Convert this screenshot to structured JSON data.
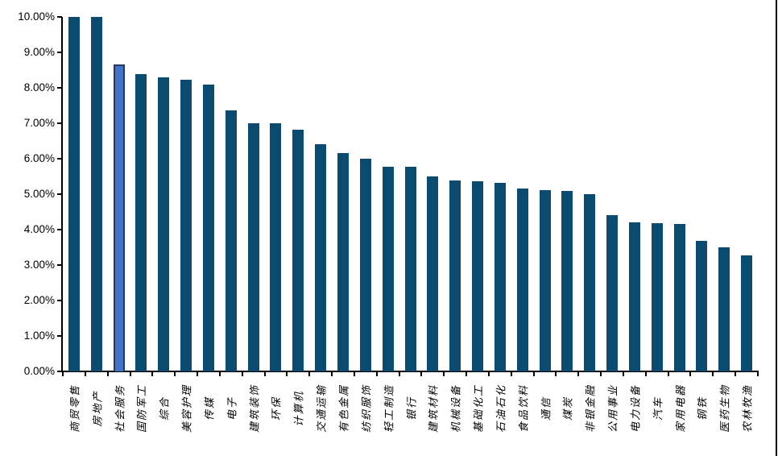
{
  "chart_data": {
    "type": "bar",
    "title": "",
    "xlabel": "",
    "ylabel": "",
    "categories": [
      "商贸零售",
      "房地产",
      "社会服务",
      "国防军工",
      "综合",
      "美容护理",
      "传媒",
      "电子",
      "建筑装饰",
      "环保",
      "计算机",
      "交通运输",
      "有色金属",
      "纺织服饰",
      "轻工制造",
      "银行",
      "建筑材料",
      "机械设备",
      "基础化工",
      "石油石化",
      "食品饮料",
      "通信",
      "煤炭",
      "非银金融",
      "公用事业",
      "电力设备",
      "汽车",
      "家用电器",
      "钢铁",
      "医药生物",
      "农林牧渔"
    ],
    "values": [
      10.0,
      10.0,
      8.65,
      8.38,
      8.3,
      8.23,
      8.1,
      7.36,
      7.0,
      6.99,
      6.82,
      6.4,
      6.15,
      6.01,
      5.78,
      5.77,
      5.5,
      5.38,
      5.37,
      5.31,
      5.15,
      5.12,
      5.1,
      5.0,
      4.42,
      4.2,
      4.19,
      4.17,
      3.68,
      3.5,
      3.27
    ],
    "highlight_index": 2,
    "y_tick_labels": [
      "0.00%",
      "1.00%",
      "2.00%",
      "3.00%",
      "4.00%",
      "5.00%",
      "6.00%",
      "7.00%",
      "8.00%",
      "9.00%",
      "10.00%"
    ],
    "ylim": [
      0,
      10
    ],
    "grid": "off",
    "legend": "none",
    "colors": {
      "bar": "#0A4B6F",
      "highlight_fill": "#4472C4",
      "highlight_border": "#1F3864",
      "axis": "#000000",
      "background": "#FFFFFF"
    }
  }
}
